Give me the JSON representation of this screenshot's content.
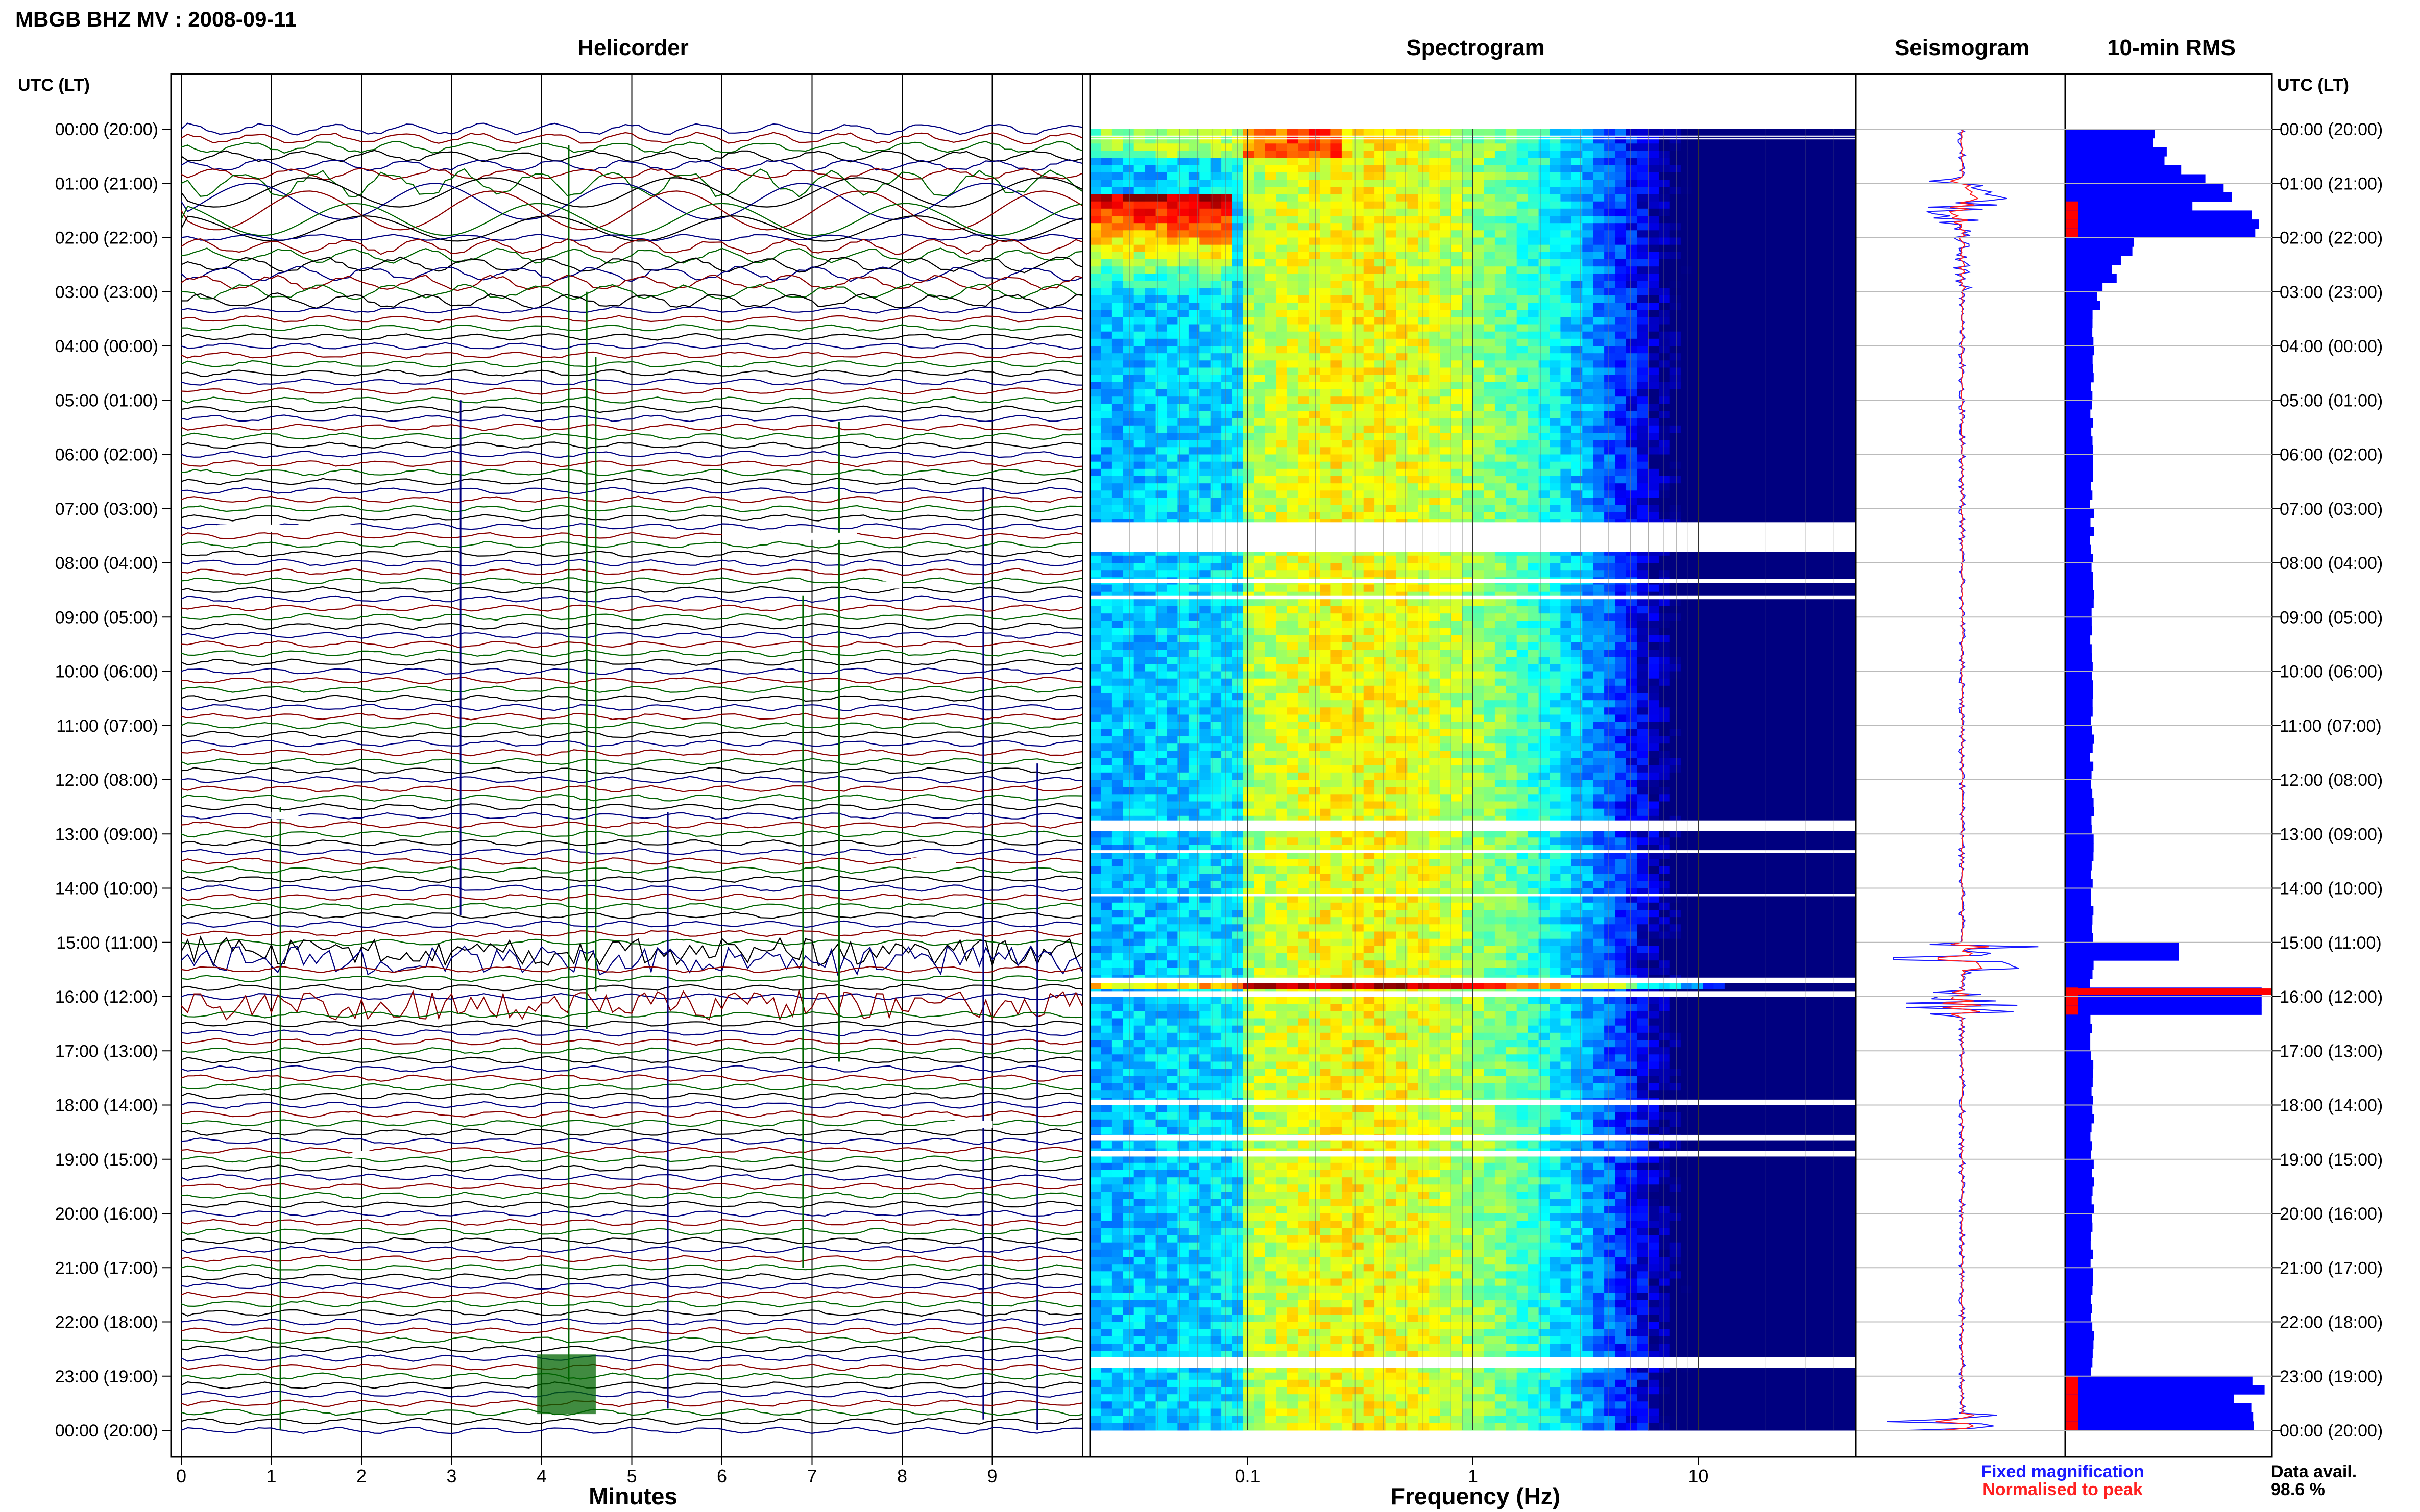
{
  "header": {
    "title": "MBGB BHZ MV : 2008-09-11"
  },
  "panels": {
    "helicorder": "Helicorder",
    "spectrogram": "Spectrogram",
    "seismogram": "Seismogram",
    "rms": "10-min RMS"
  },
  "axes": {
    "time_left_label": "UTC (LT)",
    "time_right_label": "UTC (LT)",
    "time_ticks": [
      "00:00 (20:00)",
      "01:00 (21:00)",
      "02:00 (22:00)",
      "03:00 (23:00)",
      "04:00 (00:00)",
      "05:00 (01:00)",
      "06:00 (02:00)",
      "07:00 (03:00)",
      "08:00 (04:00)",
      "09:00 (05:00)",
      "10:00 (06:00)",
      "11:00 (07:00)",
      "12:00 (08:00)",
      "13:00 (09:00)",
      "14:00 (10:00)",
      "15:00 (11:00)",
      "16:00 (12:00)",
      "17:00 (13:00)",
      "18:00 (14:00)",
      "19:00 (15:00)",
      "20:00 (16:00)",
      "21:00 (17:00)",
      "22:00 (18:00)",
      "23:00 (19:00)",
      "00:00 (20:00)"
    ],
    "minutes_label": "Minutes",
    "minute_ticks": [
      "0",
      "1",
      "2",
      "3",
      "4",
      "5",
      "6",
      "7",
      "8",
      "9"
    ],
    "frequency_label": "Frequency (Hz)",
    "frequency_ticks": [
      "0.1",
      "1",
      "10"
    ]
  },
  "legend": {
    "fixed": "Fixed magnification",
    "normalised": "Normalised to peak",
    "fixed_color": "#1a1aff",
    "normalised_color": "#ff2020"
  },
  "availability": {
    "label": "Data avail.",
    "value": "98.6 %"
  },
  "colors": {
    "trace_cycle": [
      "#000080",
      "#8b0000",
      "#006400",
      "#000000"
    ],
    "rms_fill": "#0000ff",
    "rms_peak": "#ff0000"
  },
  "chart_data": [
    {
      "type": "bar",
      "title": "10-min RMS",
      "series": [
        {
          "name": "Fixed magnification",
          "values": [
            0.12,
            0.15,
            0.55,
            0.6,
            0.75,
            0.8,
            0.4,
            0.35,
            0.2,
            0.18,
            0.15,
            0.14,
            0.12,
            0.12,
            0.11,
            0.11,
            0.1,
            0.13,
            0.12,
            0.14,
            0.15,
            0.16,
            0.16,
            0.17,
            0.95,
            0.8,
            0.4,
            0.2,
            0.13
          ]
        }
      ],
      "ylim": [
        0,
        1
      ]
    },
    {
      "type": "heatmap",
      "title": "Spectrogram",
      "xlabel": "Frequency (Hz)",
      "xscale": "log",
      "xlim": [
        0.02,
        50
      ],
      "ylabel": "UTC (LT)"
    },
    {
      "type": "line",
      "title": "Helicorder",
      "xlabel": "Minutes",
      "xlim": [
        0,
        10
      ],
      "ylabel": "UTC (LT)"
    }
  ]
}
